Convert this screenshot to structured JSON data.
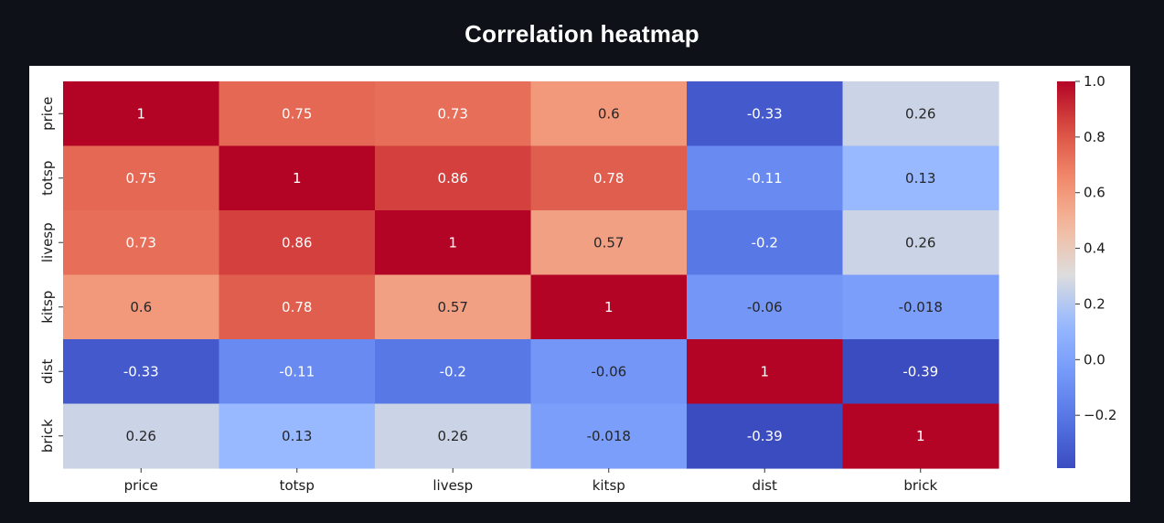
{
  "title": "Correlation heatmap",
  "chart_data": {
    "type": "heatmap",
    "title": "",
    "xlabel": "",
    "ylabel": "",
    "x_categories": [
      "price",
      "totsp",
      "livesp",
      "kitsp",
      "dist",
      "brick"
    ],
    "y_categories": [
      "price",
      "totsp",
      "livesp",
      "kitsp",
      "dist",
      "brick"
    ],
    "values": [
      [
        1,
        0.75,
        0.73,
        0.6,
        -0.33,
        0.26
      ],
      [
        0.75,
        1,
        0.86,
        0.78,
        -0.11,
        0.13
      ],
      [
        0.73,
        0.86,
        1,
        0.57,
        -0.2,
        0.26
      ],
      [
        0.6,
        0.78,
        0.57,
        1,
        -0.06,
        -0.018
      ],
      [
        -0.33,
        -0.11,
        -0.2,
        -0.06,
        1,
        -0.39
      ],
      [
        0.26,
        0.13,
        0.26,
        -0.018,
        -0.39,
        1
      ]
    ],
    "annotations": [
      [
        "1",
        "0.75",
        "0.73",
        "0.6",
        "-0.33",
        "0.26"
      ],
      [
        "0.75",
        "1",
        "0.86",
        "0.78",
        "-0.11",
        "0.13"
      ],
      [
        "0.73",
        "0.86",
        "1",
        "0.57",
        "-0.2",
        "0.26"
      ],
      [
        "0.6",
        "0.78",
        "0.57",
        "1",
        "-0.06",
        "-0.018"
      ],
      [
        "-0.33",
        "-0.11",
        "-0.2",
        "-0.06",
        "1",
        "-0.39"
      ],
      [
        "0.26",
        "0.13",
        "0.26",
        "-0.018",
        "-0.39",
        "1"
      ]
    ],
    "colormap": "coolwarm",
    "color_range": [
      -0.39,
      1
    ],
    "colorbar_ticks": [
      1.0,
      0.8,
      0.6,
      0.4,
      0.2,
      0.0,
      -0.2
    ],
    "colorbar_tick_labels": [
      "1.0",
      "0.8",
      "0.6",
      "0.4",
      "0.2",
      "0.0",
      "−0.2"
    ],
    "grid": false
  }
}
